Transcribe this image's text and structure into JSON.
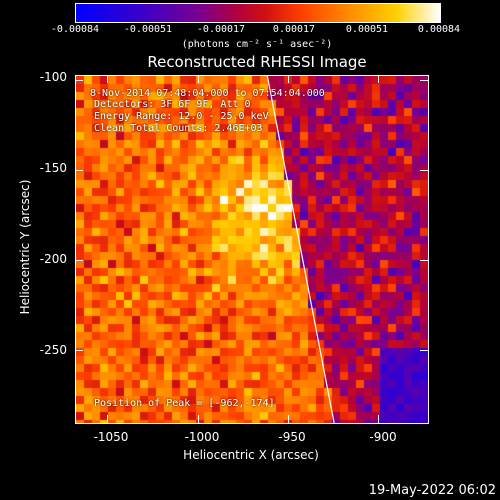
{
  "colorbar": {
    "tick_labels": [
      "-0.00084",
      "-0.00051",
      "-0.00017",
      "0.00017",
      "0.00051",
      "0.00084"
    ],
    "units": "(photons cm⁻² s⁻¹ asec⁻²)"
  },
  "plot": {
    "title": "Reconstructed RHESSI Image",
    "xlabel": "Heliocentric X (arcsec)",
    "ylabel": "Heliocentric Y (arcsec)",
    "x_ticks": [
      "-1050",
      "-1000",
      "-950",
      "-900"
    ],
    "y_ticks": [
      "-100",
      "-150",
      "-200",
      "-250"
    ],
    "info_lines": [
      "8-Nov-2014 07:48:04.000 to 07:54:04.000",
      "Detectors: 3F 6F 9F, Att 0",
      "Energy Range: 12.0 - 25.0 keV",
      "Clean    Total Counts: 2.46E+03"
    ],
    "peak": "Position of Peak = [-962,-174]"
  },
  "chart_data": {
    "type": "heatmap",
    "title": "Reconstructed RHESSI Image",
    "xlabel": "Heliocentric X (arcsec)",
    "ylabel": "Heliocentric Y (arcsec)",
    "xlim": [
      -1068,
      -873
    ],
    "ylim": [
      -290,
      -97
    ],
    "colorbar_range": [
      -0.00084,
      0.00084
    ],
    "peak_position": [
      -962,
      -174
    ],
    "limb_line": [
      [
        -962,
        -97
      ],
      [
        -925,
        -290
      ]
    ]
  },
  "footer": {
    "datestamp": "19-May-2022 06:02"
  }
}
